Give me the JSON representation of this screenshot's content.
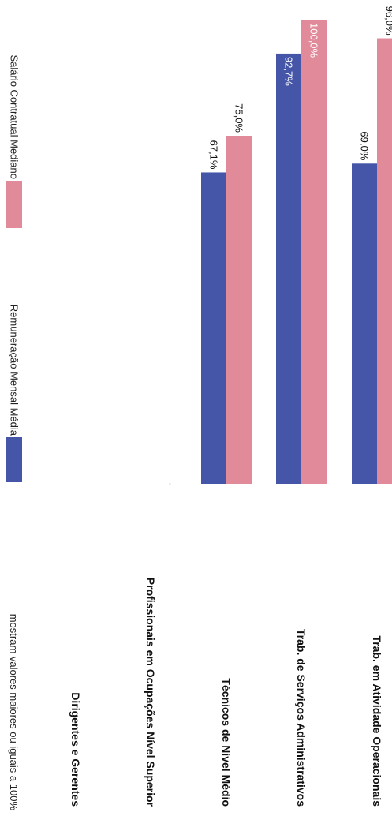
{
  "note_text": "mostram valores maiores ou iguais a 100%",
  "chart_data": {
    "type": "bar",
    "categories": [
      "Dirigentes e Gerentes",
      "Profissionais em Ocupações Nível Superior",
      "Técnicos de Nível Médio",
      "Trab. de Serviços Administrativos",
      "Trab. em Atividade Operacionais"
    ],
    "series": [
      {
        "name": "Remuneração Mensal Média",
        "color": "#4556a8",
        "values": [
          null,
          null,
          67.1,
          92.7,
          69.0
        ],
        "labels": [
          "",
          "",
          "67,1%",
          "92,7%",
          "69,0%"
        ]
      },
      {
        "name": "Salário Contratual Mediano",
        "color": "#e08a9a",
        "values": [
          null,
          null,
          75.0,
          100.0,
          96.0
        ],
        "labels": [
          "",
          "",
          "75,0%",
          "100,0%",
          "96,0%"
        ]
      }
    ],
    "ylim": [
      0,
      100
    ],
    "grid": false,
    "legend_position": "top"
  }
}
